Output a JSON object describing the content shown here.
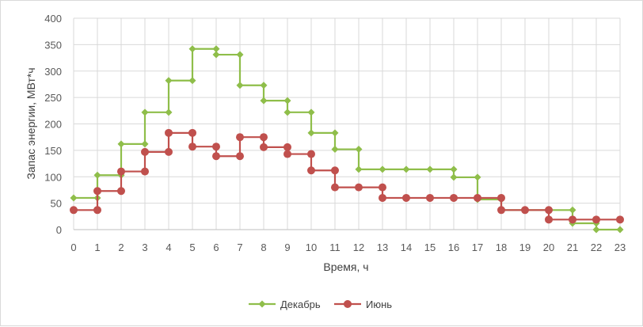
{
  "chart_data": {
    "type": "line",
    "step": true,
    "xlabel": "Время, ч",
    "ylabel": "Запас энергии, МВт*ч",
    "xlim": [
      0,
      23
    ],
    "ylim": [
      0,
      400
    ],
    "x_ticks": [
      "0",
      "1",
      "2",
      "3",
      "4",
      "5",
      "6",
      "7",
      "8",
      "9",
      "10",
      "11",
      "12",
      "13",
      "14",
      "15",
      "16",
      "17",
      "18",
      "19",
      "20",
      "21",
      "22",
      "23"
    ],
    "y_ticks": [
      "0",
      "50",
      "100",
      "150",
      "200",
      "250",
      "300",
      "350",
      "400"
    ],
    "grid": true,
    "legend_position": "bottom",
    "series": [
      {
        "name": "Декабрь",
        "color": "#8fbe4a",
        "marker": "diamond",
        "points": [
          [
            0,
            60
          ],
          [
            1,
            60
          ],
          [
            1,
            103
          ],
          [
            2,
            103
          ],
          [
            2,
            162
          ],
          [
            3,
            162
          ],
          [
            3,
            222
          ],
          [
            4,
            222
          ],
          [
            4,
            282
          ],
          [
            5,
            282
          ],
          [
            5,
            342
          ],
          [
            6,
            342
          ],
          [
            6,
            331
          ],
          [
            7,
            331
          ],
          [
            7,
            273
          ],
          [
            8,
            273
          ],
          [
            8,
            244
          ],
          [
            9,
            244
          ],
          [
            9,
            222
          ],
          [
            10,
            222
          ],
          [
            10,
            183
          ],
          [
            11,
            183
          ],
          [
            11,
            152
          ],
          [
            12,
            152
          ],
          [
            12,
            114
          ],
          [
            13,
            114
          ],
          [
            14,
            114
          ],
          [
            15,
            114
          ],
          [
            16,
            114
          ],
          [
            16,
            99
          ],
          [
            17,
            99
          ],
          [
            17,
            57
          ],
          [
            18,
            57
          ],
          [
            18,
            37
          ],
          [
            19,
            37
          ],
          [
            20,
            37
          ],
          [
            21,
            37
          ],
          [
            21,
            12
          ],
          [
            22,
            12
          ],
          [
            22,
            0
          ],
          [
            23,
            0
          ]
        ]
      },
      {
        "name": "Июнь",
        "color": "#c0504d",
        "marker": "circle",
        "points": [
          [
            0,
            37
          ],
          [
            1,
            37
          ],
          [
            1,
            73
          ],
          [
            2,
            73
          ],
          [
            2,
            110
          ],
          [
            3,
            110
          ],
          [
            3,
            147
          ],
          [
            4,
            147
          ],
          [
            4,
            183
          ],
          [
            5,
            183
          ],
          [
            5,
            157
          ],
          [
            6,
            157
          ],
          [
            6,
            139
          ],
          [
            7,
            139
          ],
          [
            7,
            175
          ],
          [
            8,
            175
          ],
          [
            8,
            156
          ],
          [
            9,
            156
          ],
          [
            9,
            143
          ],
          [
            10,
            143
          ],
          [
            10,
            112
          ],
          [
            11,
            112
          ],
          [
            11,
            80
          ],
          [
            12,
            80
          ],
          [
            13,
            80
          ],
          [
            13,
            60
          ],
          [
            14,
            60
          ],
          [
            15,
            60
          ],
          [
            16,
            60
          ],
          [
            17,
            60
          ],
          [
            18,
            60
          ],
          [
            18,
            37
          ],
          [
            19,
            37
          ],
          [
            20,
            37
          ],
          [
            20,
            19
          ],
          [
            21,
            19
          ],
          [
            22,
            19
          ],
          [
            23,
            19
          ]
        ]
      }
    ]
  }
}
